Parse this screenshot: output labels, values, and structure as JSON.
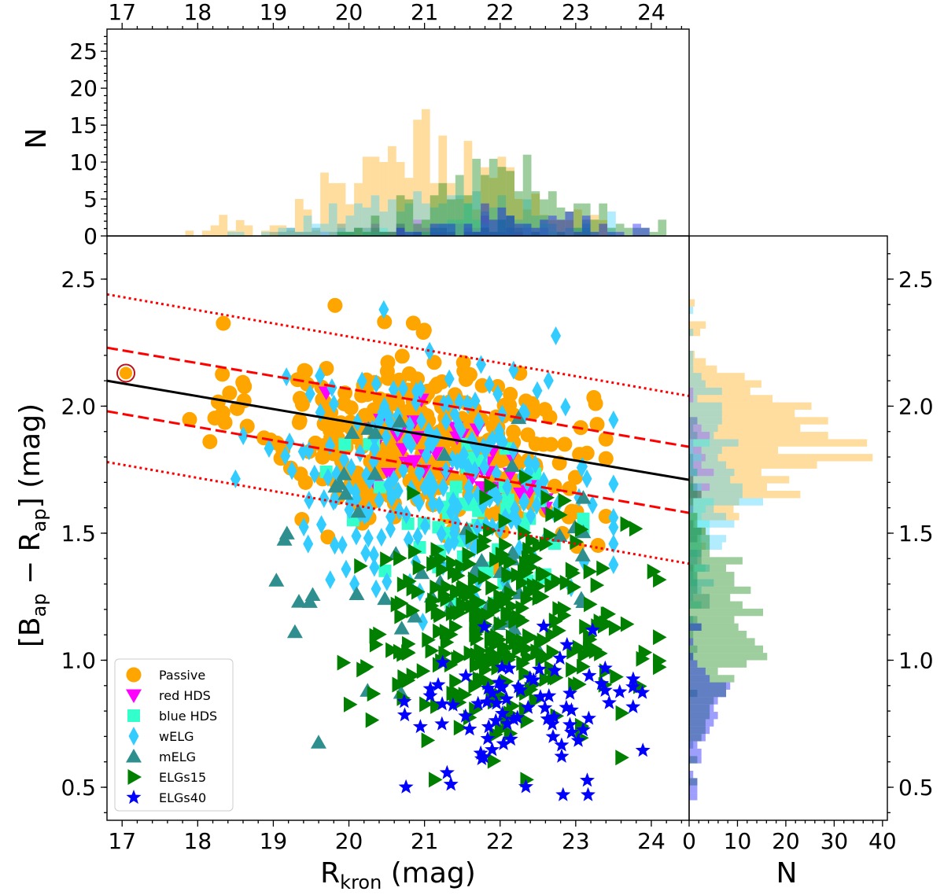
{
  "chart_data": {
    "type": "scatter",
    "title": "",
    "xlabel": "R_kron (mag)",
    "ylabel": "[B_ap − R_ap] (mag)",
    "xlabel_parts": {
      "main": "R",
      "sub": "kron",
      "rest": " (mag)"
    },
    "ylabel_parts": {
      "open": "[B",
      "sub1": "ap",
      "mid": " − R",
      "sub2": "ap",
      "close": "] (mag)"
    },
    "xlim": [
      16.8,
      24.5
    ],
    "ylim": [
      0.37,
      2.67
    ],
    "xticks": [
      "17",
      "18",
      "19",
      "20",
      "21",
      "22",
      "23",
      "24"
    ],
    "yticks": [
      "0.5",
      "1.0",
      "1.5",
      "2.0",
      "2.5"
    ],
    "top_hist": {
      "ylabel": "N",
      "ylim": [
        0,
        28
      ],
      "yticks": [
        "0",
        "5",
        "10",
        "15",
        "20",
        "25"
      ]
    },
    "right_hist": {
      "xlabel": "N",
      "xlim": [
        0,
        41
      ],
      "xticks": [
        "0",
        "10",
        "20",
        "30",
        "40"
      ]
    },
    "lines": [
      {
        "name": "red sequence fit",
        "style": "solid",
        "color": "#000000",
        "x": [
          16.8,
          24.5
        ],
        "y": [
          2.1,
          1.71
        ]
      },
      {
        "name": "upper dashed",
        "style": "dashed",
        "color": "#ff0000",
        "x": [
          16.8,
          24.5
        ],
        "y": [
          2.23,
          1.84
        ]
      },
      {
        "name": "lower dashed",
        "style": "dashed",
        "color": "#ff0000",
        "x": [
          16.8,
          24.5
        ],
        "y": [
          1.98,
          1.58
        ]
      },
      {
        "name": "upper dotted",
        "style": "dotted",
        "color": "#ff0000",
        "x": [
          16.8,
          24.5
        ],
        "y": [
          2.44,
          2.04
        ]
      },
      {
        "name": "lower dotted",
        "style": "dotted",
        "color": "#ff0000",
        "x": [
          16.8,
          24.5
        ],
        "y": [
          1.78,
          1.38
        ]
      }
    ],
    "highlight": {
      "x": 17.05,
      "y": 2.13,
      "color": "#c0101a"
    },
    "series": [
      {
        "name": "Passive",
        "marker": "circle",
        "color": "#ffa500",
        "count": 380,
        "x_mean": 21.0,
        "x_sd": 1.1,
        "x_range": [
          17.5,
          23.4
        ],
        "y_mean": 1.86,
        "y_sd": 0.17,
        "y_range": [
          1.1,
          2.42
        ]
      },
      {
        "name": "red HDS",
        "marker": "triangle-down",
        "color": "#ff00ff",
        "count": 40,
        "x_mean": 21.6,
        "x_sd": 0.8,
        "x_range": [
          19.7,
          23.1
        ],
        "y_mean": 1.8,
        "y_sd": 0.1,
        "y_range": [
          1.6,
          2.12
        ]
      },
      {
        "name": "blue HDS",
        "marker": "square",
        "color": "#33ffcc",
        "count": 55,
        "x_mean": 21.6,
        "x_sd": 0.9,
        "x_range": [
          19.7,
          23.1
        ],
        "y_mean": 1.55,
        "y_sd": 0.18,
        "y_range": [
          1.05,
          1.85
        ]
      },
      {
        "name": "wELG",
        "marker": "diamond",
        "color": "#33ccff",
        "count": 230,
        "x_mean": 21.2,
        "x_sd": 1.1,
        "x_range": [
          18.5,
          23.5
        ],
        "y_mean": 1.72,
        "y_sd": 0.22,
        "y_range": [
          1.15,
          2.38
        ]
      },
      {
        "name": "mELG",
        "marker": "triangle-up",
        "color": "#2f8f8f",
        "count": 55,
        "x_mean": 21.3,
        "x_sd": 1.1,
        "x_range": [
          18.7,
          23.1
        ],
        "y_mean": 1.42,
        "y_sd": 0.3,
        "y_range": [
          0.57,
          2.22
        ]
      },
      {
        "name": "ELGs15",
        "marker": "triangle-right",
        "color": "#007f00",
        "count": 300,
        "x_mean": 22.0,
        "x_sd": 0.9,
        "x_range": [
          19.7,
          24.1
        ],
        "y_mean": 1.12,
        "y_sd": 0.22,
        "y_range": [
          0.53,
          1.72
        ]
      },
      {
        "name": "ELGs40",
        "marker": "star",
        "color": "#0000ff",
        "count": 85,
        "x_mean": 22.4,
        "x_sd": 0.75,
        "x_range": [
          20.4,
          23.9
        ],
        "y_mean": 0.82,
        "y_sd": 0.14,
        "y_range": [
          0.47,
          1.18
        ]
      }
    ]
  }
}
